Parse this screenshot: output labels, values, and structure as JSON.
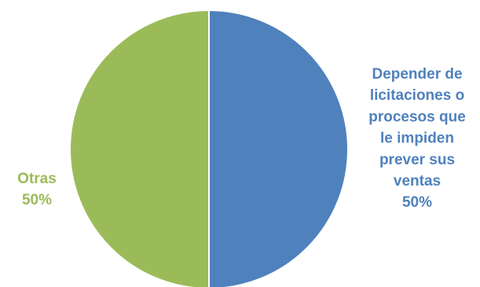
{
  "chart_data": {
    "type": "pie",
    "title": "",
    "slices": [
      {
        "label_lines": [
          "Depender de",
          "licitaciones o",
          "procesos que",
          "le impiden",
          "prever sus",
          "ventas"
        ],
        "value": 50,
        "value_label": "50%",
        "color": "#4F81BD"
      },
      {
        "label_lines": [
          "Otras"
        ],
        "value": 50,
        "value_label": "50%",
        "color": "#9BBB59"
      }
    ],
    "start": "top",
    "direction": "clockwise",
    "legend": "none"
  }
}
